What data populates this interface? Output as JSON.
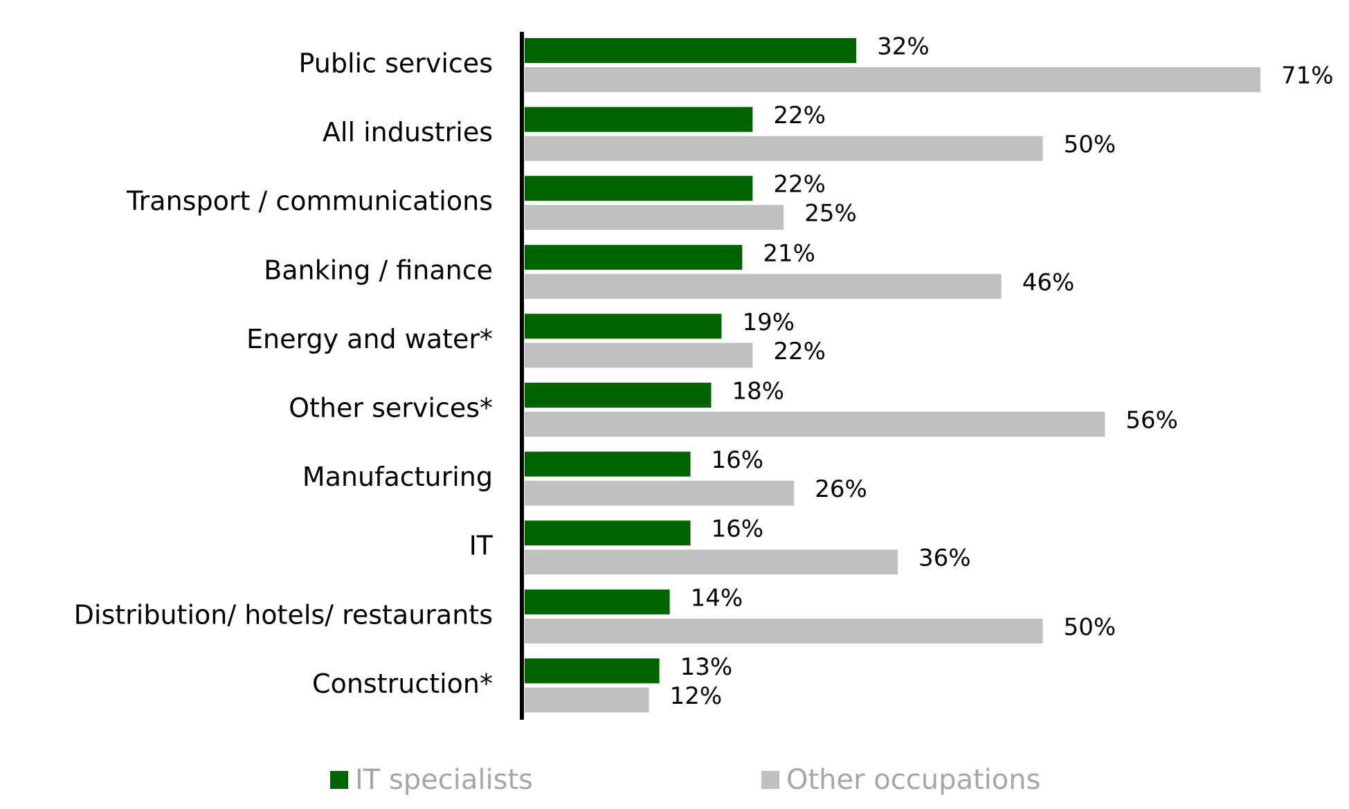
{
  "chart_data": {
    "type": "bar",
    "orientation": "horizontal",
    "categories": [
      "Public services",
      "All industries",
      "Transport / communications",
      "Banking / finance",
      "Energy and water*",
      "Other services*",
      "Manufacturing",
      "IT",
      "Distribution/ hotels/ restaurants",
      "Construction*"
    ],
    "series": [
      {
        "name": "IT specialists",
        "color": "#006400",
        "values": [
          32,
          22,
          22,
          21,
          19,
          18,
          16,
          16,
          14,
          13
        ],
        "labels": [
          "32%",
          "22%",
          "22%",
          "21%",
          "19%",
          "18%",
          "16%",
          "16%",
          "14%",
          "13%"
        ]
      },
      {
        "name": "Other occupations",
        "color": "#c0c0c0",
        "values": [
          71,
          50,
          25,
          46,
          22,
          56,
          26,
          36,
          50,
          12
        ],
        "labels": [
          "71%",
          "50%",
          "25%",
          "46%",
          "22%",
          "56%",
          "26%",
          "36%",
          "50%",
          "12%"
        ]
      }
    ],
    "xlim": [
      0,
      71
    ],
    "grid": false,
    "legend_position": "bottom"
  }
}
